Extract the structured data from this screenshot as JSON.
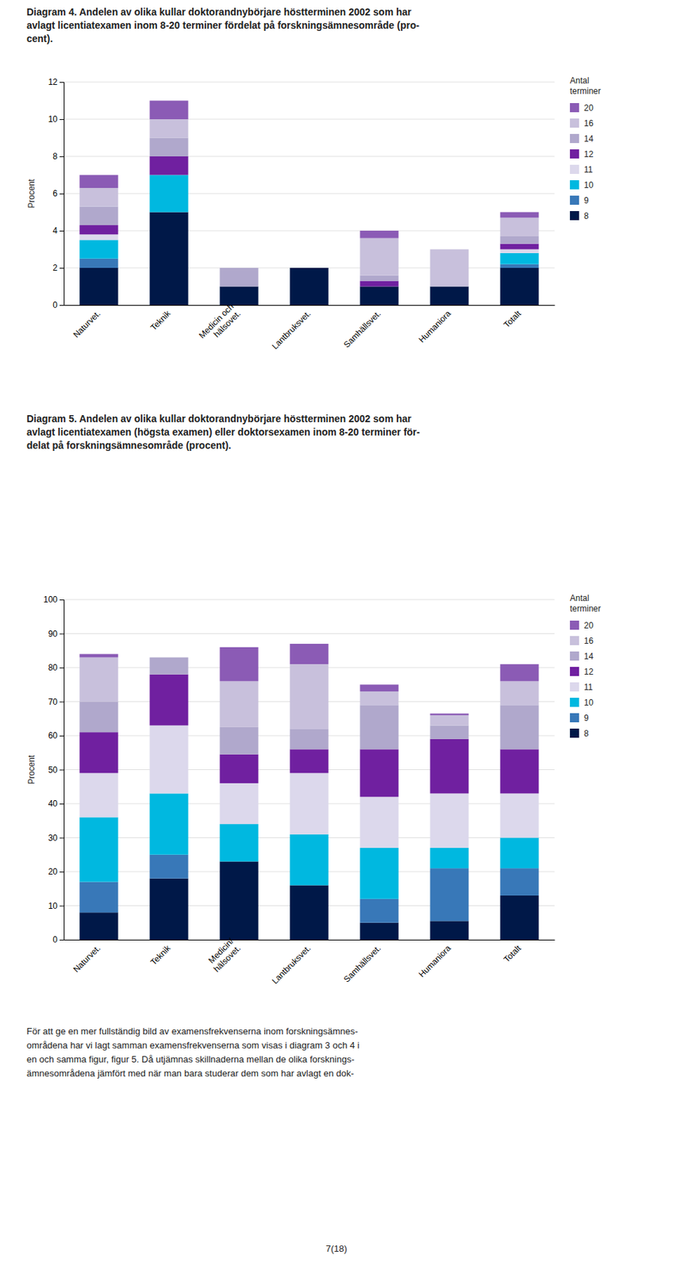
{
  "chart_data": [
    {
      "type": "bar",
      "stacked": true,
      "grid": true,
      "title": "Diagram 4. Andelen av olika kullar doktorandnybörjare höstterminen 2002 som har\navlagt licentiatexamen inom 8-20 terminer fördelat på forskningsämnesområde (pro-\ncent).",
      "ylabel": "Procent",
      "legend_title": "Antal\nterminer",
      "categories": [
        "Naturvet.",
        "Teknik",
        "Medicin och\nhälsovet.",
        "Lantbruksvet.",
        "Samhällsvet.",
        "Humaniora",
        "Totalt"
      ],
      "ylim": [
        0,
        12
      ],
      "yticks": [
        0,
        2,
        4,
        6,
        8,
        10,
        12
      ],
      "series": [
        {
          "name": "8",
          "color": "#001848",
          "values": [
            2.0,
            5.0,
            1.0,
            2.0,
            1.0,
            1.0,
            2.0
          ]
        },
        {
          "name": "9",
          "color": "#3878b8",
          "values": [
            0.5,
            0.0,
            0.0,
            0.0,
            0.0,
            0.0,
            0.2
          ]
        },
        {
          "name": "10",
          "color": "#00b8e0",
          "values": [
            1.0,
            2.0,
            0.0,
            0.0,
            0.0,
            0.0,
            0.6
          ]
        },
        {
          "name": "11",
          "color": "#dcd8ec",
          "values": [
            0.3,
            0.0,
            0.0,
            0.0,
            0.0,
            0.0,
            0.2
          ]
        },
        {
          "name": "12",
          "color": "#7020a0",
          "values": [
            0.5,
            1.0,
            0.0,
            0.0,
            0.3,
            0.0,
            0.3
          ]
        },
        {
          "name": "14",
          "color": "#b0a8cc",
          "values": [
            1.0,
            1.0,
            1.0,
            0.0,
            0.3,
            0.0,
            0.4
          ]
        },
        {
          "name": "16",
          "color": "#c8c0dc",
          "values": [
            1.0,
            1.0,
            0.0,
            0.0,
            2.0,
            2.0,
            1.0
          ]
        },
        {
          "name": "20",
          "color": "#8b5bb5",
          "values": [
            0.7,
            1.0,
            0.0,
            0.0,
            0.4,
            0.0,
            0.3
          ]
        }
      ]
    },
    {
      "type": "bar",
      "stacked": true,
      "grid": true,
      "title": "Diagram 5. Andelen av olika kullar doktorandnybörjare höstterminen 2002 som har\navlagt licentiatexamen (högsta examen) eller doktorsexamen inom 8-20 terminer för-\ndelat på forskningsämnesområde (procent).",
      "ylabel": "Procent",
      "legend_title": "Antal\nterminer",
      "categories": [
        "Naturvet.",
        "Teknik",
        "Medicin/\nhälsovet.",
        "Lantbruksvet.",
        "Samhällsvet.",
        "Humaniora",
        "Totalt"
      ],
      "ylim": [
        0,
        100
      ],
      "yticks": [
        0,
        10,
        20,
        30,
        40,
        50,
        60,
        70,
        80,
        90,
        100
      ],
      "series": [
        {
          "name": "8",
          "color": "#001848",
          "values": [
            8.0,
            18.0,
            23.0,
            16.0,
            5.0,
            5.5,
            13.0
          ]
        },
        {
          "name": "9",
          "color": "#3878b8",
          "values": [
            9.0,
            7.0,
            0.0,
            0.0,
            7.0,
            15.5,
            8.0
          ]
        },
        {
          "name": "10",
          "color": "#00b8e0",
          "values": [
            19.0,
            18.0,
            11.0,
            15.0,
            15.0,
            6.0,
            9.0
          ]
        },
        {
          "name": "11",
          "color": "#dcd8ec",
          "values": [
            13.0,
            20.0,
            12.0,
            18.0,
            15.0,
            16.0,
            13.0
          ]
        },
        {
          "name": "12",
          "color": "#7020a0",
          "values": [
            12.0,
            15.0,
            8.5,
            7.0,
            14.0,
            16.0,
            13.0
          ]
        },
        {
          "name": "14",
          "color": "#b0a8cc",
          "values": [
            9.0,
            5.0,
            8.0,
            6.0,
            13.0,
            4.0,
            13.0
          ]
        },
        {
          "name": "16",
          "color": "#c8c0dc",
          "values": [
            13.0,
            0.0,
            13.5,
            19.0,
            4.0,
            3.0,
            7.0
          ]
        },
        {
          "name": "20",
          "color": "#8b5bb5",
          "values": [
            1.0,
            0.0,
            10.0,
            6.0,
            2.0,
            0.5,
            5.0
          ]
        }
      ]
    }
  ],
  "footer": "För att ge en mer fullständig bild av examensfrekvenserna inom forskningsämnes-\nområdena har vi lagt samman examensfrekvenserna som visas i diagram 3 och 4 i\nen och samma figur, figur 5. Då utjämnas skillnaderna mellan de olika forsknings-\nämnesområdena jämfört med när man bara studerar dem som har avlagt en dok-",
  "page_number": "7(18)"
}
